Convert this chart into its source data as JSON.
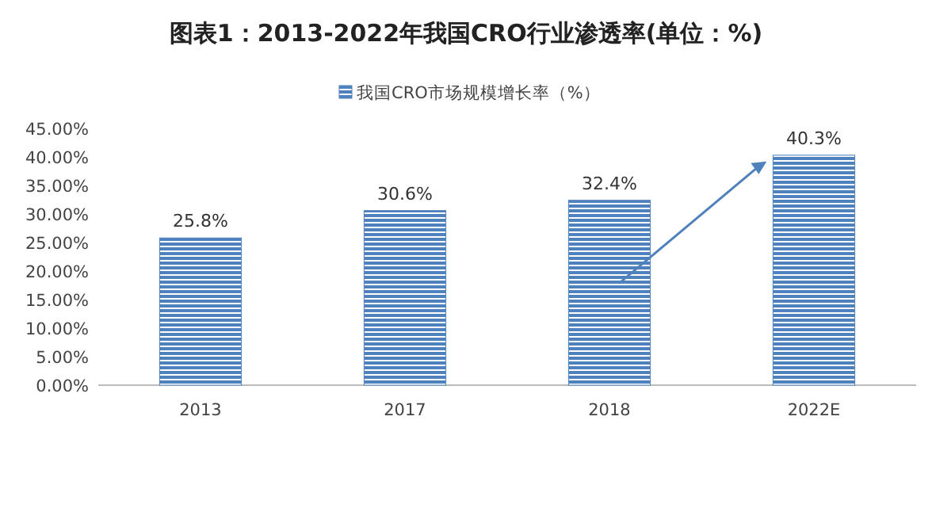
{
  "chart_data": {
    "type": "bar",
    "title": "图表1：2013-2022年我国CRO行业渗透率(单位：%)",
    "categories": [
      "2013",
      "2017",
      "2018",
      "2022E"
    ],
    "series": [
      {
        "name": "我国CRO市场规模增长率（%）",
        "color": "#4f81bd",
        "values": [
          25.8,
          30.6,
          32.4,
          40.3
        ]
      }
    ],
    "value_labels": [
      "25.8%",
      "30.6%",
      "32.4%",
      "40.3%"
    ],
    "ylim": [
      0,
      45
    ],
    "yticks": [
      {
        "value": 0,
        "label": "0.00%"
      },
      {
        "value": 5,
        "label": "5.00%"
      },
      {
        "value": 10,
        "label": "10.00%"
      },
      {
        "value": 15,
        "label": "15.00%"
      },
      {
        "value": 20,
        "label": "20.00%"
      },
      {
        "value": 25,
        "label": "25.00%"
      },
      {
        "value": 30,
        "label": "30.00%"
      },
      {
        "value": 35,
        "label": "35.00%"
      },
      {
        "value": 40,
        "label": "40.00%"
      },
      {
        "value": 45,
        "label": "45.00%"
      }
    ],
    "grid": false,
    "legend": "top"
  }
}
